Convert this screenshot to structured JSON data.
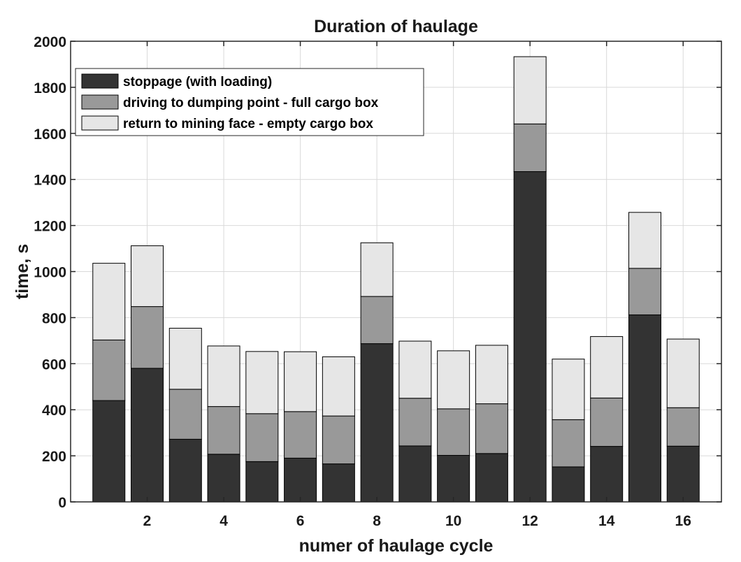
{
  "chart_data": {
    "type": "bar",
    "stacked": true,
    "title": "Duration of haulage",
    "xlabel": "numer of haulage cycle",
    "ylabel": "time, s",
    "x": [
      1,
      2,
      3,
      4,
      5,
      6,
      7,
      8,
      9,
      10,
      11,
      12,
      13,
      14,
      15,
      16
    ],
    "xticks": [
      2,
      4,
      6,
      8,
      10,
      12,
      14,
      16
    ],
    "xlim": [
      0,
      17
    ],
    "ylim": [
      0,
      2000
    ],
    "yticks": [
      0,
      200,
      400,
      600,
      800,
      1000,
      1200,
      1400,
      1600,
      1800,
      2000
    ],
    "grid": true,
    "legend_position": "top-left",
    "series": [
      {
        "name": "stoppage (with loading)",
        "color": "#333333",
        "values": [
          440,
          580,
          272,
          207,
          175,
          190,
          165,
          687,
          243,
          202,
          210,
          1434,
          152,
          241,
          812,
          242
        ]
      },
      {
        "name": "driving to dumping point - full cargo box",
        "color": "#999999",
        "values": [
          263,
          268,
          217,
          207,
          208,
          202,
          208,
          205,
          207,
          202,
          216,
          207,
          205,
          210,
          202,
          167
        ]
      },
      {
        "name": "return to mining face - empty cargo box",
        "color": "#e6e6e6",
        "values": [
          333,
          264,
          265,
          263,
          270,
          260,
          257,
          233,
          248,
          252,
          254,
          292,
          263,
          267,
          243,
          298
        ]
      }
    ]
  }
}
